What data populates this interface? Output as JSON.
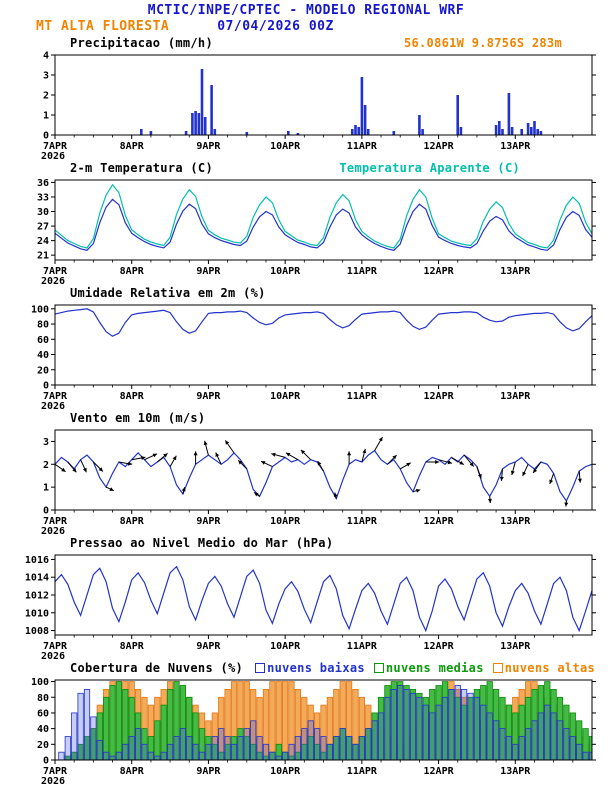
{
  "header": {
    "title": "MCTIC/INPE/CPTEC - MODELO REGIONAL WRF",
    "station": "MT ALTA FLORESTA",
    "run": "07/04/2026 00Z"
  },
  "colors": {
    "blue": "#1616cc",
    "orange": "#ee8400",
    "line_blue": "#2233cc",
    "cyan": "#00c0ae",
    "black": "#000000"
  },
  "x_axis": {
    "total_hours": 168,
    "data_step_hours": 2,
    "major_hours": [
      0,
      24,
      48,
      72,
      96,
      120,
      144
    ],
    "labels": [
      "7APR",
      "8APR",
      "9APR",
      "10APR",
      "11APR",
      "12APR",
      "13APR"
    ],
    "minor_step": 6,
    "year": "2026"
  },
  "chart_data": [
    {
      "id": "precipitation",
      "type": "bar",
      "title": "Precipitacao (mm/h)",
      "right_label": {
        "text": "56.0861W 9.8756S 283m",
        "color": "#ee8400"
      },
      "ylim": [
        0,
        4
      ],
      "yticks": [
        0,
        1,
        2,
        3,
        4
      ],
      "series": [
        {
          "name": "precipitacao",
          "type": "bar_pairs",
          "color": "#2233cc",
          "pairs": [
            [
              27,
              0.3
            ],
            [
              30,
              0.2
            ],
            [
              41,
              0.2
            ],
            [
              43,
              1.1
            ],
            [
              44,
              1.2
            ],
            [
              45,
              1.1
            ],
            [
              46,
              3.3
            ],
            [
              47,
              0.9
            ],
            [
              49,
              2.5
            ],
            [
              50,
              0.3
            ],
            [
              60,
              0.15
            ],
            [
              73,
              0.2
            ],
            [
              76,
              0.1
            ],
            [
              93,
              0.3
            ],
            [
              94,
              0.5
            ],
            [
              95,
              0.4
            ],
            [
              96,
              2.9
            ],
            [
              97,
              1.5
            ],
            [
              98,
              0.3
            ],
            [
              106,
              0.2
            ],
            [
              114,
              1.0
            ],
            [
              115,
              0.3
            ],
            [
              126,
              2.0
            ],
            [
              127,
              0.4
            ],
            [
              138,
              0.5
            ],
            [
              139,
              0.7
            ],
            [
              140,
              0.3
            ],
            [
              142,
              2.1
            ],
            [
              143,
              0.4
            ],
            [
              146,
              0.3
            ],
            [
              148,
              0.6
            ],
            [
              149,
              0.4
            ],
            [
              150,
              0.7
            ],
            [
              151,
              0.3
            ],
            [
              152,
              0.2
            ]
          ]
        }
      ]
    },
    {
      "id": "temperature",
      "type": "line",
      "title": "2-m Temperatura (C)",
      "legend": [
        {
          "text": "Temperatura Aparente (C)",
          "color": "#00c0ae"
        }
      ],
      "ylim": [
        20,
        36.5
      ],
      "yticks": [
        21,
        24,
        27,
        30,
        33,
        36
      ],
      "series": [
        {
          "name": "Temperatura Aparente (C)",
          "type": "line",
          "color": "#00c0ae",
          "values": [
            26.2,
            25.1,
            24.0,
            23.4,
            22.8,
            22.5,
            24.4,
            29.7,
            33.4,
            35.5,
            33.9,
            29.2,
            26.2,
            25.2,
            24.3,
            23.7,
            23.3,
            23.0,
            24.7,
            29.4,
            32.6,
            34.5,
            33.1,
            28.9,
            26.1,
            25.2,
            24.5,
            24.1,
            23.7,
            23.5,
            24.9,
            28.8,
            31.4,
            33.0,
            31.8,
            28.3,
            25.9,
            25.0,
            24.1,
            23.7,
            23.2,
            23.0,
            24.6,
            28.8,
            31.8,
            33.5,
            32.2,
            28.3,
            25.9,
            24.8,
            23.9,
            23.3,
            22.8,
            22.5,
            24.3,
            29.1,
            32.5,
            34.5,
            33.0,
            28.6,
            25.4,
            24.6,
            23.9,
            23.5,
            23.2,
            23.0,
            24.4,
            28.0,
            30.5,
            32.0,
            30.8,
            27.5,
            25.4,
            24.5,
            23.6,
            23.2,
            22.7,
            22.5,
            24.1,
            28.3,
            31.3,
            33.0,
            31.7,
            27.8,
            25.4
          ]
        },
        {
          "name": "2-m Temperatura (C)",
          "type": "line",
          "color": "#2233cc",
          "values": [
            25.5,
            24.5,
            23.5,
            22.9,
            22.3,
            22.0,
            23.4,
            27.7,
            30.9,
            32.5,
            31.4,
            27.7,
            25.5,
            24.6,
            23.8,
            23.2,
            22.8,
            22.5,
            23.7,
            27.4,
            30.1,
            31.5,
            30.6,
            27.4,
            25.4,
            24.6,
            24.0,
            23.6,
            23.2,
            23.0,
            23.9,
            26.8,
            28.9,
            30.0,
            29.3,
            26.8,
            25.2,
            24.4,
            23.6,
            23.2,
            22.7,
            22.5,
            23.6,
            26.8,
            29.3,
            30.5,
            29.7,
            26.8,
            25.2,
            24.2,
            23.4,
            22.8,
            22.3,
            22.0,
            23.3,
            27.1,
            30.0,
            31.5,
            30.5,
            27.1,
            24.7,
            24.0,
            23.4,
            23.0,
            22.7,
            22.5,
            23.4,
            26.0,
            28.0,
            29.0,
            28.3,
            26.0,
            24.7,
            23.9,
            23.1,
            22.7,
            22.2,
            22.0,
            23.1,
            26.3,
            28.8,
            30.0,
            29.2,
            26.3,
            24.7
          ]
        }
      ]
    },
    {
      "id": "humidity",
      "type": "line",
      "title": "Umidade Relativa em 2m (%)",
      "ylim": [
        0,
        105
      ],
      "yticks": [
        0,
        20,
        40,
        60,
        80,
        100
      ],
      "series": [
        {
          "name": "Umidade Relativa",
          "type": "line",
          "color": "#2233cc",
          "values": [
            93,
            95,
            97,
            98,
            99,
            100,
            96,
            82,
            70,
            64,
            68,
            82,
            92,
            94,
            95,
            96,
            97,
            98,
            95,
            83,
            73,
            68,
            71,
            83,
            94,
            95,
            95,
            96,
            96,
            97,
            95,
            88,
            82,
            79,
            81,
            88,
            92,
            93,
            94,
            95,
            95,
            96,
            94,
            86,
            79,
            75,
            78,
            86,
            93,
            94,
            95,
            96,
            96,
            97,
            95,
            85,
            77,
            73,
            76,
            85,
            93,
            94,
            95,
            95,
            96,
            96,
            95,
            89,
            85,
            83,
            84,
            89,
            91,
            92,
            93,
            94,
            94,
            95,
            93,
            83,
            75,
            71,
            74,
            83,
            91
          ]
        }
      ]
    },
    {
      "id": "wind",
      "type": "line",
      "title": "Vento em 10m (m/s)",
      "ylim": [
        0,
        3.5
      ],
      "yticks": [
        0,
        1,
        2,
        3
      ],
      "series": [
        {
          "name": "Velocidade do vento",
          "type": "line",
          "color": "#2233cc",
          "values": [
            2.0,
            2.3,
            2.1,
            1.8,
            2.2,
            2.4,
            2.1,
            1.4,
            1.0,
            1.6,
            2.1,
            1.9,
            2.2,
            2.5,
            2.2,
            1.9,
            2.1,
            2.3,
            1.9,
            1.1,
            0.7,
            1.4,
            2.0,
            2.2,
            2.4,
            2.2,
            2.0,
            2.2,
            2.5,
            2.2,
            1.8,
            0.9,
            0.6,
            1.2,
            1.9,
            2.1,
            2.3,
            2.1,
            2.2,
            2.0,
            2.2,
            2.1,
            1.7,
            1.0,
            0.5,
            1.3,
            2.0,
            2.2,
            2.1,
            2.4,
            2.6,
            2.2,
            2.0,
            2.2,
            1.8,
            1.2,
            0.8,
            1.5,
            2.1,
            2.3,
            2.2,
            2.0,
            2.3,
            2.1,
            2.4,
            2.2,
            1.9,
            1.0,
            0.6,
            1.1,
            1.8,
            2.0,
            2.1,
            2.3,
            2.0,
            1.8,
            2.1,
            2.0,
            1.6,
            0.8,
            0.4,
            1.0,
            1.7,
            1.9,
            2.0
          ]
        }
      ],
      "arrows": {
        "every_hours": 4,
        "color": "#000000",
        "dirs": [
          35,
          50,
          65,
          45,
          25,
          10,
          350,
          335,
          320,
          300,
          285,
          270,
          255,
          245,
          235,
          225,
          215,
          205,
          195,
          210,
          225,
          240,
          255,
          270,
          285,
          300,
          315,
          330,
          345,
          0,
          15,
          30,
          50,
          70,
          85,
          95,
          105,
          115,
          125,
          110,
          95,
          85,
          75
        ]
      }
    },
    {
      "id": "pressure",
      "type": "line",
      "title": "Pressao ao Nivel Medio do Mar (hPa)",
      "ylim": [
        1007.5,
        1016.5
      ],
      "yticks": [
        1008,
        1010,
        1012,
        1014,
        1016
      ],
      "series": [
        {
          "name": "Pressao ao nivel medio do mar",
          "type": "line",
          "color": "#2233cc",
          "values": [
            1013.5,
            1014.3,
            1013.2,
            1011.2,
            1009.7,
            1012.0,
            1014.3,
            1015.0,
            1013.5,
            1010.5,
            1009.0,
            1011.2,
            1013.7,
            1014.5,
            1013.4,
            1011.4,
            1009.9,
            1012.2,
            1014.5,
            1015.2,
            1013.7,
            1010.7,
            1009.2,
            1011.4,
            1013.3,
            1014.1,
            1013.0,
            1011.0,
            1009.5,
            1011.8,
            1014.1,
            1014.8,
            1013.3,
            1010.3,
            1008.8,
            1011.0,
            1012.7,
            1013.5,
            1012.4,
            1010.4,
            1008.9,
            1011.2,
            1013.5,
            1014.2,
            1012.7,
            1009.7,
            1008.2,
            1010.4,
            1012.5,
            1013.3,
            1012.2,
            1010.2,
            1008.7,
            1011.0,
            1013.3,
            1014.0,
            1012.5,
            1009.5,
            1008.0,
            1010.2,
            1013.0,
            1013.8,
            1012.7,
            1010.7,
            1009.2,
            1011.5,
            1013.8,
            1014.5,
            1013.0,
            1010.0,
            1008.5,
            1010.7,
            1012.5,
            1013.3,
            1012.2,
            1010.2,
            1008.7,
            1011.0,
            1013.3,
            1014.0,
            1012.5,
            1009.5,
            1008.0,
            1010.2,
            1012.5
          ]
        }
      ]
    },
    {
      "id": "clouds",
      "type": "bar",
      "title": "Cobertura de Nuvens (%)",
      "legend": [
        {
          "text": "nuvens baixas",
          "color": "#2233cc"
        },
        {
          "text": "nuvens medias",
          "color": "#0a9a0a"
        },
        {
          "text": "nuvens altas",
          "color": "#ee8400"
        }
      ],
      "ylim": [
        0,
        102
      ],
      "yticks": [
        0,
        20,
        40,
        60,
        80,
        100
      ],
      "series": [
        {
          "name": "nuvens altas",
          "type": "bars",
          "color": "#e07818",
          "fill": "#f5aa5a",
          "values": [
            0,
            0,
            0,
            5,
            10,
            20,
            40,
            70,
            90,
            100,
            100,
            100,
            100,
            90,
            80,
            70,
            80,
            90,
            100,
            100,
            90,
            80,
            70,
            60,
            50,
            60,
            80,
            90,
            100,
            100,
            100,
            90,
            80,
            90,
            100,
            100,
            100,
            100,
            90,
            80,
            70,
            60,
            70,
            80,
            90,
            100,
            100,
            90,
            80,
            70,
            60,
            50,
            40,
            30,
            20,
            30,
            40,
            50,
            60,
            70,
            80,
            90,
            100,
            90,
            80,
            70,
            60,
            50,
            40,
            50,
            60,
            70,
            80,
            90,
            100,
            100,
            90,
            80,
            70,
            60,
            50,
            40,
            30,
            20,
            10
          ]
        },
        {
          "name": "nuvens medias",
          "type": "bars",
          "color": "#0a8a0a",
          "fill": "#44bb44",
          "values": [
            0,
            0,
            5,
            10,
            20,
            30,
            40,
            60,
            80,
            95,
            100,
            90,
            80,
            60,
            40,
            30,
            50,
            70,
            90,
            100,
            95,
            80,
            60,
            40,
            30,
            20,
            10,
            20,
            30,
            40,
            30,
            20,
            10,
            5,
            10,
            20,
            10,
            5,
            10,
            20,
            30,
            20,
            10,
            20,
            30,
            40,
            30,
            20,
            30,
            40,
            60,
            80,
            95,
            100,
            100,
            95,
            90,
            85,
            80,
            90,
            95,
            100,
            90,
            80,
            70,
            80,
            90,
            95,
            100,
            90,
            80,
            70,
            60,
            70,
            80,
            90,
            95,
            100,
            90,
            80,
            70,
            60,
            50,
            40,
            30
          ]
        },
        {
          "name": "nuvens baixas",
          "type": "bars",
          "color": "#2233cc",
          "fill": "rgba(70,90,220,0.30)",
          "values": [
            0,
            10,
            30,
            60,
            85,
            90,
            55,
            25,
            10,
            5,
            10,
            20,
            30,
            40,
            20,
            10,
            5,
            10,
            20,
            30,
            40,
            30,
            20,
            10,
            20,
            30,
            40,
            30,
            20,
            30,
            40,
            50,
            30,
            20,
            10,
            5,
            10,
            20,
            30,
            40,
            50,
            40,
            30,
            20,
            30,
            40,
            30,
            20,
            30,
            40,
            50,
            60,
            80,
            90,
            95,
            90,
            85,
            80,
            70,
            60,
            70,
            80,
            90,
            95,
            90,
            85,
            80,
            70,
            60,
            50,
            40,
            30,
            20,
            30,
            40,
            50,
            60,
            70,
            60,
            50,
            40,
            30,
            20,
            10,
            10
          ]
        }
      ]
    }
  ]
}
